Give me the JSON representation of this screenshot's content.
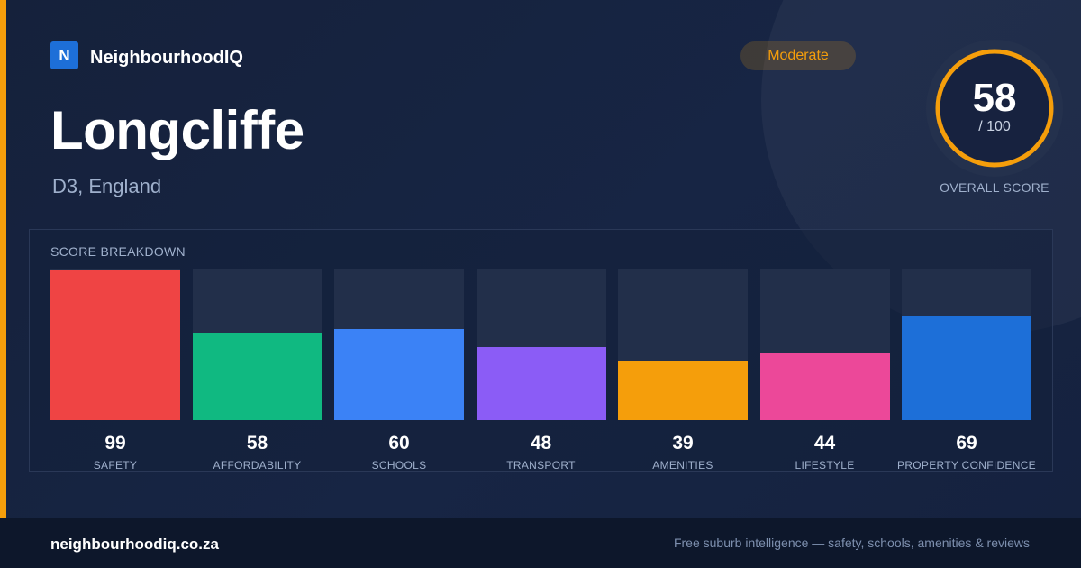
{
  "brand": {
    "logo_letter": "N",
    "name": "NeighbourhoodIQ"
  },
  "place": {
    "name": "Longcliffe",
    "region": "D3, England"
  },
  "rating_badge": "Moderate",
  "overall": {
    "score": "58",
    "max": "/ 100",
    "label": "OVERALL SCORE",
    "fraction": 0.58
  },
  "breakdown_title": "SCORE BREAKDOWN",
  "chart_data": {
    "type": "bar",
    "title": "SCORE BREAKDOWN",
    "categories": [
      "SAFETY",
      "AFFORDABILITY",
      "SCHOOLS",
      "TRANSPORT",
      "AMENITIES",
      "LIFESTYLE",
      "PROPERTY CONFIDENCE"
    ],
    "values": [
      99,
      58,
      60,
      48,
      39,
      44,
      69
    ],
    "value_labels": [
      "99",
      "58",
      "60",
      "48",
      "39",
      "44",
      "69"
    ],
    "colors": [
      "#ef4444",
      "#10b981",
      "#3b82f6",
      "#8b5cf6",
      "#f59e0b",
      "#ec4899",
      "#1d6fd8"
    ],
    "ylim": [
      0,
      100
    ],
    "grid": false,
    "legend": "none"
  },
  "footer": {
    "url": "neighbourhoodiq.co.za",
    "tagline": "Free suburb intelligence — safety, schools, amenities & reviews"
  },
  "colors": {
    "accent": "#f59e0b",
    "brand": "#1d6fd8",
    "background": "#152240",
    "footer": "#0d172b"
  }
}
